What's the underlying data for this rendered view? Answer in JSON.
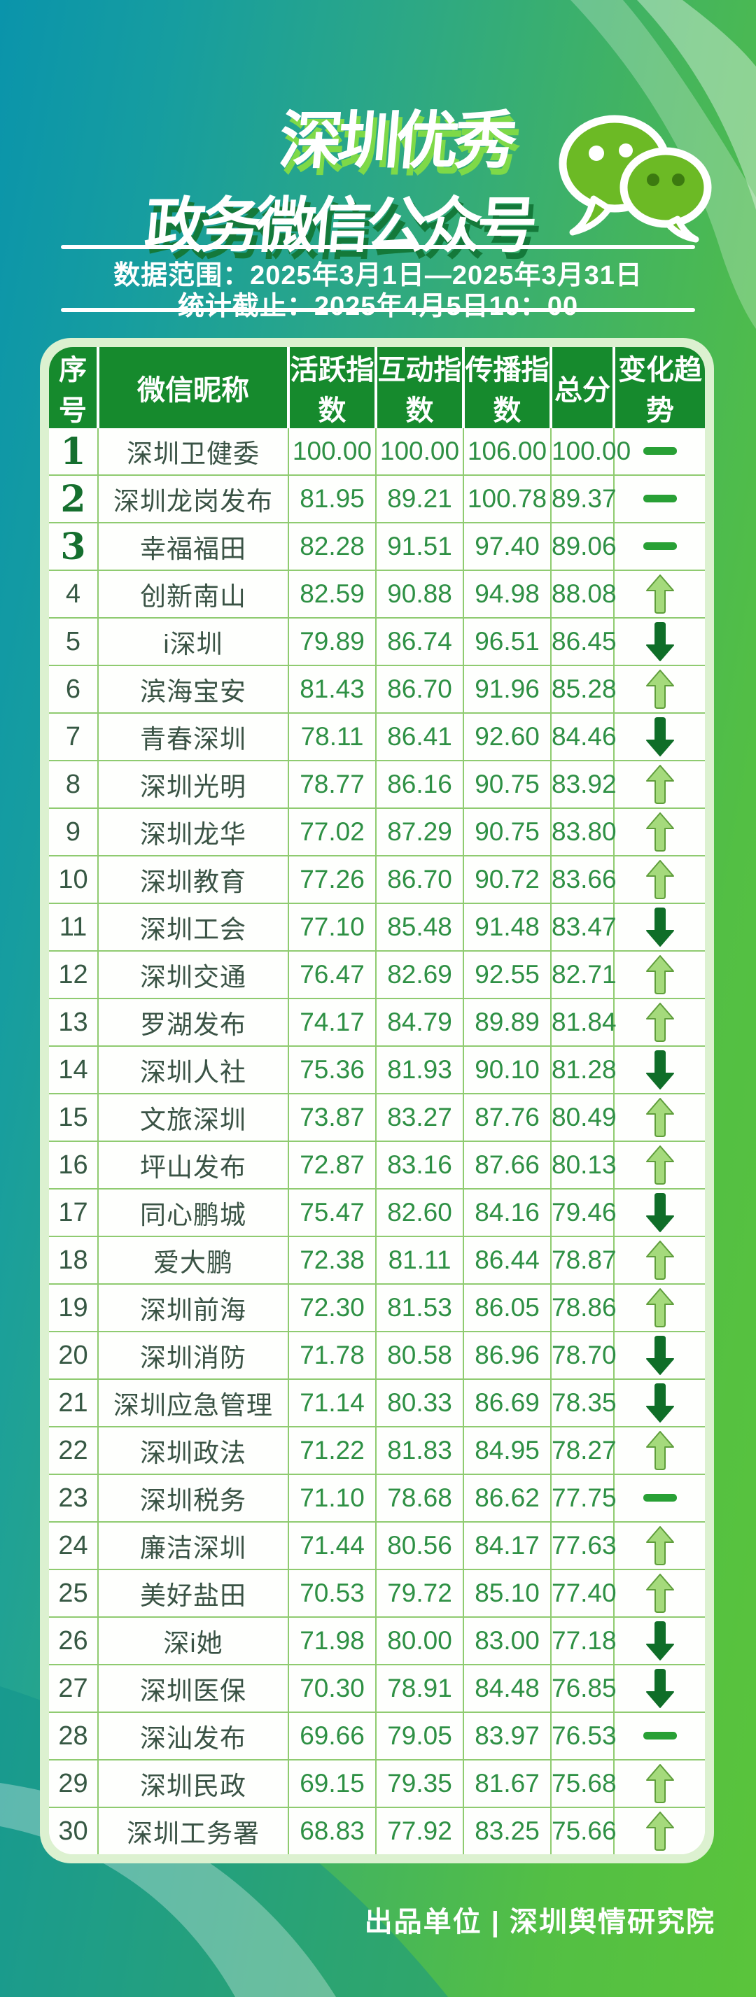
{
  "header": {
    "title_line1": "深圳优秀",
    "title_line2": "政务微信公众号",
    "data_range": "数据范围：2025年3月1日—2025年3月31日",
    "stats_deadline": "统计截止：2025年4月5日10：00"
  },
  "table": {
    "columns": [
      "序号",
      "微信昵称",
      "活跃指数",
      "互动指数",
      "传播指数",
      "总分",
      "变化趋势"
    ],
    "rows": [
      {
        "rank": "1",
        "name": "深圳卫健委",
        "active": "100.00",
        "interact": "100.00",
        "spread": "106.00",
        "total": "100.00",
        "trend": "flat"
      },
      {
        "rank": "2",
        "name": "深圳龙岗发布",
        "active": "81.95",
        "interact": "89.21",
        "spread": "100.78",
        "total": "89.37",
        "trend": "flat"
      },
      {
        "rank": "3",
        "name": "幸福福田",
        "active": "82.28",
        "interact": "91.51",
        "spread": "97.40",
        "total": "89.06",
        "trend": "flat"
      },
      {
        "rank": "4",
        "name": "创新南山",
        "active": "82.59",
        "interact": "90.88",
        "spread": "94.98",
        "total": "88.08",
        "trend": "up"
      },
      {
        "rank": "5",
        "name": "i深圳",
        "active": "79.89",
        "interact": "86.74",
        "spread": "96.51",
        "total": "86.45",
        "trend": "down"
      },
      {
        "rank": "6",
        "name": "滨海宝安",
        "active": "81.43",
        "interact": "86.70",
        "spread": "91.96",
        "total": "85.28",
        "trend": "up"
      },
      {
        "rank": "7",
        "name": "青春深圳",
        "active": "78.11",
        "interact": "86.41",
        "spread": "92.60",
        "total": "84.46",
        "trend": "down"
      },
      {
        "rank": "8",
        "name": "深圳光明",
        "active": "78.77",
        "interact": "86.16",
        "spread": "90.75",
        "total": "83.92",
        "trend": "up"
      },
      {
        "rank": "9",
        "name": "深圳龙华",
        "active": "77.02",
        "interact": "87.29",
        "spread": "90.75",
        "total": "83.80",
        "trend": "up"
      },
      {
        "rank": "10",
        "name": "深圳教育",
        "active": "77.26",
        "interact": "86.70",
        "spread": "90.72",
        "total": "83.66",
        "trend": "up"
      },
      {
        "rank": "11",
        "name": "深圳工会",
        "active": "77.10",
        "interact": "85.48",
        "spread": "91.48",
        "total": "83.47",
        "trend": "down"
      },
      {
        "rank": "12",
        "name": "深圳交通",
        "active": "76.47",
        "interact": "82.69",
        "spread": "92.55",
        "total": "82.71",
        "trend": "up"
      },
      {
        "rank": "13",
        "name": "罗湖发布",
        "active": "74.17",
        "interact": "84.79",
        "spread": "89.89",
        "total": "81.84",
        "trend": "up"
      },
      {
        "rank": "14",
        "name": "深圳人社",
        "active": "75.36",
        "interact": "81.93",
        "spread": "90.10",
        "total": "81.28",
        "trend": "down"
      },
      {
        "rank": "15",
        "name": "文旅深圳",
        "active": "73.87",
        "interact": "83.27",
        "spread": "87.76",
        "total": "80.49",
        "trend": "up"
      },
      {
        "rank": "16",
        "name": "坪山发布",
        "active": "72.87",
        "interact": "83.16",
        "spread": "87.66",
        "total": "80.13",
        "trend": "up"
      },
      {
        "rank": "17",
        "name": "同心鹏城",
        "active": "75.47",
        "interact": "82.60",
        "spread": "84.16",
        "total": "79.46",
        "trend": "down"
      },
      {
        "rank": "18",
        "name": "爱大鹏",
        "active": "72.38",
        "interact": "81.11",
        "spread": "86.44",
        "total": "78.87",
        "trend": "up"
      },
      {
        "rank": "19",
        "name": "深圳前海",
        "active": "72.30",
        "interact": "81.53",
        "spread": "86.05",
        "total": "78.86",
        "trend": "up"
      },
      {
        "rank": "20",
        "name": "深圳消防",
        "active": "71.78",
        "interact": "80.58",
        "spread": "86.96",
        "total": "78.70",
        "trend": "down"
      },
      {
        "rank": "21",
        "name": "深圳应急管理",
        "active": "71.14",
        "interact": "80.33",
        "spread": "86.69",
        "total": "78.35",
        "trend": "down"
      },
      {
        "rank": "22",
        "name": "深圳政法",
        "active": "71.22",
        "interact": "81.83",
        "spread": "84.95",
        "total": "78.27",
        "trend": "up"
      },
      {
        "rank": "23",
        "name": "深圳税务",
        "active": "71.10",
        "interact": "78.68",
        "spread": "86.62",
        "total": "77.75",
        "trend": "flat"
      },
      {
        "rank": "24",
        "name": "廉洁深圳",
        "active": "71.44",
        "interact": "80.56",
        "spread": "84.17",
        "total": "77.63",
        "trend": "up"
      },
      {
        "rank": "25",
        "name": "美好盐田",
        "active": "70.53",
        "interact": "79.72",
        "spread": "85.10",
        "total": "77.40",
        "trend": "up"
      },
      {
        "rank": "26",
        "name": "深i她",
        "active": "71.98",
        "interact": "80.00",
        "spread": "83.00",
        "total": "77.18",
        "trend": "down"
      },
      {
        "rank": "27",
        "name": "深圳医保",
        "active": "70.30",
        "interact": "78.91",
        "spread": "84.48",
        "total": "76.85",
        "trend": "down"
      },
      {
        "rank": "28",
        "name": "深汕发布",
        "active": "69.66",
        "interact": "79.05",
        "spread": "83.97",
        "total": "76.53",
        "trend": "flat"
      },
      {
        "rank": "29",
        "name": "深圳民政",
        "active": "69.15",
        "interact": "79.35",
        "spread": "81.67",
        "total": "75.68",
        "trend": "up"
      },
      {
        "rank": "30",
        "name": "深圳工务署",
        "active": "68.83",
        "interact": "77.92",
        "spread": "83.25",
        "total": "75.66",
        "trend": "up"
      }
    ]
  },
  "footer": {
    "credit": "出品单位 | 深圳舆情研究院"
  },
  "icons": {
    "wechat": "wechat-bubbles-icon",
    "trend_up": "up-arrow-icon",
    "trend_down": "down-arrow-icon",
    "trend_flat": "dash-icon"
  },
  "colors": {
    "header_band_green": "#168a2d",
    "card_border_mint": "#dcf1d0",
    "row_border_green": "#8fcb70",
    "value_green": "#2e9044",
    "rank_top3_green": "#156f2e",
    "up_arrow_fill": "#a5da7c",
    "up_arrow_edge": "#5f9e3b",
    "down_arrow_fill": "#0f6e28",
    "flat_dash": "#28a035",
    "title_shadow_light": "#7ed948",
    "title_shadow_dark": "#14793a",
    "bg_teal": "#0a94ab",
    "bg_green": "#5ac43b"
  },
  "chart_data": {
    "type": "table",
    "title": "深圳优秀政务微信公众号",
    "columns": [
      "序号",
      "微信昵称",
      "活跃指数",
      "互动指数",
      "传播指数",
      "总分",
      "变化趋势"
    ],
    "rows": [
      [
        1,
        "深圳卫健委",
        100.0,
        100.0,
        106.0,
        100.0,
        "flat"
      ],
      [
        2,
        "深圳龙岗发布",
        81.95,
        89.21,
        100.78,
        89.37,
        "flat"
      ],
      [
        3,
        "幸福福田",
        82.28,
        91.51,
        97.4,
        89.06,
        "flat"
      ],
      [
        4,
        "创新南山",
        82.59,
        90.88,
        94.98,
        88.08,
        "up"
      ],
      [
        5,
        "i深圳",
        79.89,
        86.74,
        96.51,
        86.45,
        "down"
      ],
      [
        6,
        "滨海宝安",
        81.43,
        86.7,
        91.96,
        85.28,
        "up"
      ],
      [
        7,
        "青春深圳",
        78.11,
        86.41,
        92.6,
        84.46,
        "down"
      ],
      [
        8,
        "深圳光明",
        78.77,
        86.16,
        90.75,
        83.92,
        "up"
      ],
      [
        9,
        "深圳龙华",
        77.02,
        87.29,
        90.75,
        83.8,
        "up"
      ],
      [
        10,
        "深圳教育",
        77.26,
        86.7,
        90.72,
        83.66,
        "up"
      ],
      [
        11,
        "深圳工会",
        77.1,
        85.48,
        91.48,
        83.47,
        "down"
      ],
      [
        12,
        "深圳交通",
        76.47,
        82.69,
        92.55,
        82.71,
        "up"
      ],
      [
        13,
        "罗湖发布",
        74.17,
        84.79,
        89.89,
        81.84,
        "up"
      ],
      [
        14,
        "深圳人社",
        75.36,
        81.93,
        90.1,
        81.28,
        "down"
      ],
      [
        15,
        "文旅深圳",
        73.87,
        83.27,
        87.76,
        80.49,
        "up"
      ],
      [
        16,
        "坪山发布",
        72.87,
        83.16,
        87.66,
        80.13,
        "up"
      ],
      [
        17,
        "同心鹏城",
        75.47,
        82.6,
        84.16,
        79.46,
        "down"
      ],
      [
        18,
        "爱大鹏",
        72.38,
        81.11,
        86.44,
        78.87,
        "up"
      ],
      [
        19,
        "深圳前海",
        72.3,
        81.53,
        86.05,
        78.86,
        "up"
      ],
      [
        20,
        "深圳消防",
        71.78,
        80.58,
        86.96,
        78.7,
        "down"
      ],
      [
        21,
        "深圳应急管理",
        71.14,
        80.33,
        86.69,
        78.35,
        "down"
      ],
      [
        22,
        "深圳政法",
        71.22,
        81.83,
        84.95,
        78.27,
        "up"
      ],
      [
        23,
        "深圳税务",
        71.1,
        78.68,
        86.62,
        77.75,
        "flat"
      ],
      [
        24,
        "廉洁深圳",
        71.44,
        80.56,
        84.17,
        77.63,
        "up"
      ],
      [
        25,
        "美好盐田",
        70.53,
        79.72,
        85.1,
        77.4,
        "up"
      ],
      [
        26,
        "深i她",
        71.98,
        80.0,
        83.0,
        77.18,
        "down"
      ],
      [
        27,
        "深圳医保",
        70.3,
        78.91,
        84.48,
        76.85,
        "down"
      ],
      [
        28,
        "深汕发布",
        69.66,
        79.05,
        83.97,
        76.53,
        "flat"
      ],
      [
        29,
        "深圳民政",
        69.15,
        79.35,
        81.67,
        75.68,
        "up"
      ],
      [
        30,
        "深圳工务署",
        68.83,
        77.92,
        83.25,
        75.66,
        "up"
      ]
    ]
  }
}
